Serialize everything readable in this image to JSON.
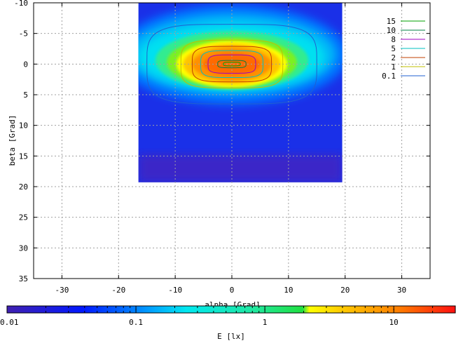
{
  "chart_data": {
    "type": "heatmap",
    "title": "",
    "xlabel": "alpha [Grad]",
    "ylabel": "beta [Grad]",
    "xlim": [
      -35,
      35
    ],
    "ylim": [
      -10,
      35
    ],
    "y_reversed": true,
    "xticks": [
      -30,
      -20,
      -10,
      0,
      10,
      20,
      30
    ],
    "yticks": [
      -10,
      -5,
      0,
      5,
      10,
      15,
      20,
      25,
      30,
      35
    ],
    "grid": true,
    "data_extent": {
      "x": [
        -16.5,
        19.5
      ],
      "y": [
        -10,
        19.3
      ]
    },
    "legend_position": "top-right",
    "contours": [
      {
        "label": "15",
        "level": 15,
        "color": "#00a000",
        "rx": 1.5,
        "ry": 0.3
      },
      {
        "label": "10",
        "level": 10,
        "color": "#008040",
        "rx": 2.5,
        "ry": 0.6
      },
      {
        "label": "8",
        "level": 8,
        "color": "#a000c0",
        "rx": 4.2,
        "ry": 1.5
      },
      {
        "label": "5",
        "level": 5,
        "color": "#00c0c0",
        "rx": 5.5,
        "ry": 2.2
      },
      {
        "label": "2",
        "level": 2,
        "color": "#c04000",
        "rx": 7.0,
        "ry": 2.9
      },
      {
        "label": "1",
        "level": 1,
        "color": "#c0c000",
        "rx": 9.0,
        "ry": 3.9
      },
      {
        "label": "0.1",
        "level": 0.1,
        "color": "#2060d0",
        "rx": 15.0,
        "ry": 6.5
      }
    ],
    "peak": {
      "alpha": 0,
      "beta": 0,
      "value": 15
    },
    "colorbar": {
      "label": "E [lx]",
      "scale": "log",
      "range": [
        0.01,
        30
      ],
      "tick_labels": [
        "0.01",
        "0.1",
        "1",
        "10"
      ],
      "colormap": "jet"
    }
  }
}
